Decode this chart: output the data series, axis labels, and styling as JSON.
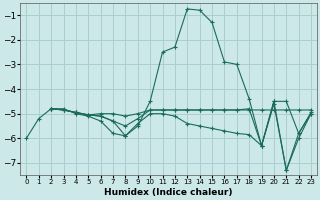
{
  "xlabel": "Humidex (Indice chaleur)",
  "bg_color": "#cce8e8",
  "grid_color": "#aacfcf",
  "line_color": "#1a6b5a",
  "xlim": [
    -0.5,
    23.5
  ],
  "ylim": [
    -7.5,
    -0.5
  ],
  "yticks": [
    -7,
    -6,
    -5,
    -4,
    -3,
    -2,
    -1
  ],
  "xticks": [
    0,
    1,
    2,
    3,
    4,
    5,
    6,
    7,
    8,
    9,
    10,
    11,
    12,
    13,
    14,
    15,
    16,
    17,
    18,
    19,
    20,
    21,
    22,
    23
  ],
  "series": [
    [
      0,
      -6.0,
      1,
      -5.2,
      2,
      -4.8,
      3,
      -4.8,
      4,
      -5.0,
      5,
      -5.1,
      6,
      -5.3,
      7,
      -5.8,
      8,
      -5.9,
      9,
      -5.5,
      10,
      -4.5,
      11,
      -2.5,
      12,
      -2.3,
      13,
      -0.75,
      14,
      -0.8,
      15,
      -1.3,
      16,
      -2.9,
      17,
      -3.0,
      18,
      -4.4,
      19,
      -6.3,
      20,
      -4.5,
      21,
      -7.3,
      22,
      -6.0,
      23,
      -5.0
    ],
    [
      2,
      -4.8,
      3,
      -4.85,
      4,
      -4.95,
      5,
      -5.05,
      6,
      -5.0,
      7,
      -5.0,
      8,
      -5.1,
      9,
      -5.0,
      10,
      -4.85,
      11,
      -4.85,
      12,
      -4.85,
      13,
      -4.85,
      14,
      -4.85,
      15,
      -4.85,
      16,
      -4.85,
      17,
      -4.85,
      18,
      -4.85,
      19,
      -4.85,
      20,
      -4.85,
      21,
      -4.85,
      22,
      -4.85,
      23,
      -4.85
    ],
    [
      2,
      -4.8,
      3,
      -4.85,
      4,
      -4.95,
      5,
      -5.05,
      6,
      -5.1,
      7,
      -5.3,
      8,
      -5.5,
      9,
      -5.2,
      10,
      -4.85,
      11,
      -4.85,
      12,
      -4.85,
      13,
      -4.85,
      14,
      -4.85,
      15,
      -4.85,
      16,
      -4.85,
      17,
      -4.85,
      18,
      -4.8,
      19,
      -6.3,
      20,
      -4.6,
      21,
      -7.3,
      22,
      -5.8,
      23,
      -4.95
    ],
    [
      2,
      -4.8,
      3,
      -4.85,
      4,
      -4.95,
      5,
      -5.05,
      6,
      -5.1,
      7,
      -5.3,
      8,
      -5.9,
      9,
      -5.4,
      10,
      -5.0,
      11,
      -5.0,
      12,
      -5.1,
      13,
      -5.4,
      14,
      -5.5,
      15,
      -5.6,
      16,
      -5.7,
      17,
      -5.8,
      18,
      -5.85,
      19,
      -6.3,
      20,
      -4.5,
      21,
      -4.5,
      22,
      -5.8,
      23,
      -5.0
    ]
  ]
}
